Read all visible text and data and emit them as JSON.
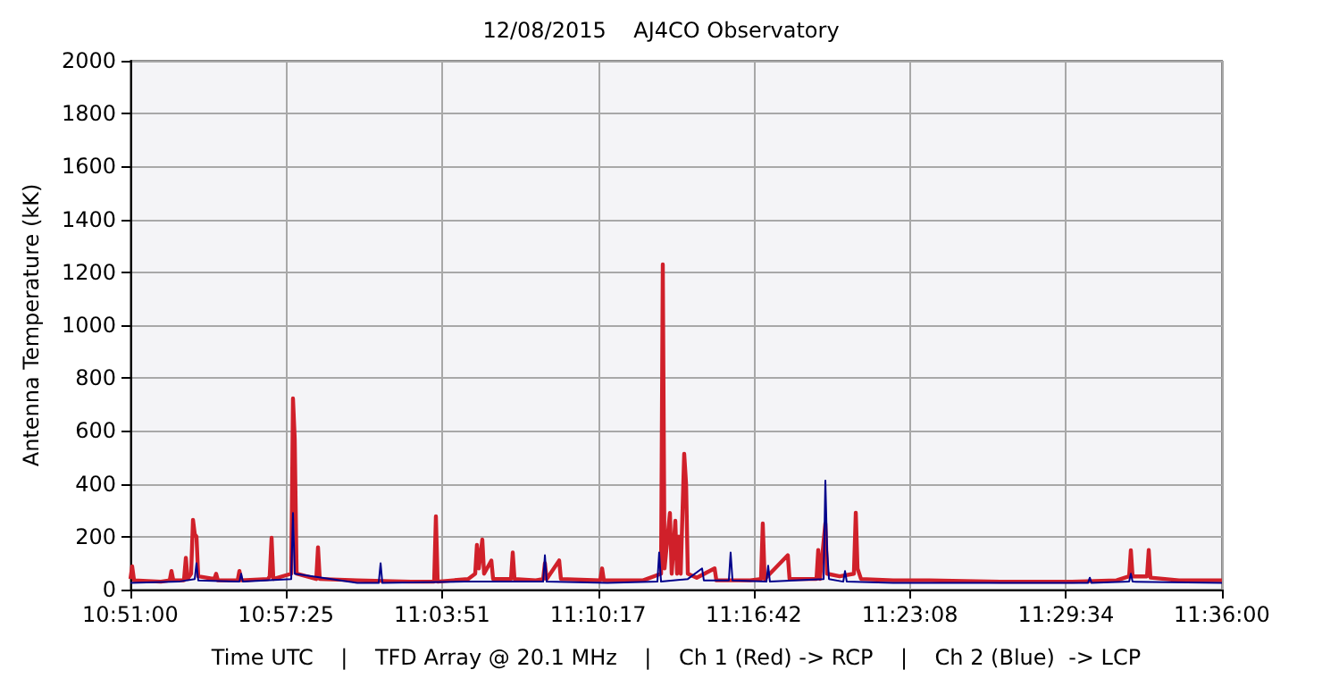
{
  "chart_data": {
    "type": "line",
    "title": "12/08/2015    AJ4CO Observatory",
    "xlabel": "Time UTC    |    TFD Array @ 20.1 MHz    |    Ch 1 (Red) -> RCP    |    Ch 2 (Blue)  -> LCP",
    "ylabel": "Antenna Temperature (kK)",
    "xlim": [
      10.85,
      11.6
    ],
    "xticks": [
      {
        "value": 10.85,
        "label": "10:51:00"
      },
      {
        "value": 10.95694,
        "label": "10:57:25"
      },
      {
        "value": 11.06417,
        "label": "11:03:51"
      },
      {
        "value": 11.17139,
        "label": "11:10:17"
      },
      {
        "value": 11.27833,
        "label": "11:16:42"
      },
      {
        "value": 11.38556,
        "label": "11:23:08"
      },
      {
        "value": 11.49278,
        "label": "11:29:34"
      },
      {
        "value": 11.6,
        "label": "11:36:00"
      }
    ],
    "ylim": [
      0,
      2000
    ],
    "yticks": [
      0,
      200,
      400,
      600,
      800,
      1000,
      1200,
      1400,
      1600,
      1800,
      2000
    ],
    "grid": true,
    "marker": "none",
    "line_style": "solid",
    "series": [
      {
        "color": "#d0202a",
        "x": [
          10.85,
          10.8512,
          10.8525,
          10.8709,
          10.877,
          10.8782,
          10.8795,
          10.8868,
          10.8881,
          10.8893,
          10.8917,
          10.893,
          10.8942,
          10.8954,
          10.8966,
          10.9077,
          10.9089,
          10.9101,
          10.9237,
          10.9249,
          10.9261,
          10.9445,
          10.9457,
          10.947,
          10.9482,
          10.9605,
          10.9617,
          10.9629,
          10.9642,
          10.9777,
          10.9789,
          10.9801,
          11.0059,
          11.0427,
          11.0587,
          11.0599,
          11.0611,
          11.082,
          11.0869,
          11.0881,
          11.0894,
          11.0918,
          11.093,
          11.098,
          11.0992,
          11.1115,
          11.1127,
          11.1139,
          11.1286,
          11.1336,
          11.1348,
          11.136,
          11.1446,
          11.1458,
          11.1728,
          11.1741,
          11.1753,
          11.2023,
          11.2146,
          11.2158,
          11.217,
          11.2207,
          11.2219,
          11.2244,
          11.2256,
          11.2268,
          11.2281,
          11.2305,
          11.2318,
          11.233,
          11.2391,
          11.2514,
          11.2526,
          11.2759,
          11.2833,
          11.2845,
          11.2858,
          11.3017,
          11.3029,
          11.3214,
          11.3226,
          11.3238,
          11.3275,
          11.3287,
          11.3373,
          11.3471,
          11.3484,
          11.3496,
          11.352,
          11.3741,
          11.3987,
          11.4478,
          11.4969,
          11.5276,
          11.5362,
          11.5374,
          11.5386,
          11.5485,
          11.5497,
          11.5509,
          11.5705,
          11.6
        ],
        "values": [
          40,
          88,
          35,
          30,
          35,
          70,
          35,
          35,
          120,
          40,
          60,
          264,
          210,
          200,
          50,
          40,
          60,
          35,
          35,
          70,
          35,
          40,
          50,
          196,
          40,
          60,
          723,
          570,
          60,
          40,
          160,
          40,
          35,
          30,
          30,
          277,
          30,
          40,
          60,
          169,
          80,
          189,
          60,
          110,
          40,
          40,
          140,
          40,
          35,
          40,
          100,
          40,
          110,
          40,
          35,
          80,
          35,
          35,
          60,
          1230,
          80,
          290,
          60,
          260,
          60,
          200,
          60,
          514,
          400,
          60,
          45,
          80,
          35,
          35,
          40,
          250,
          40,
          130,
          40,
          40,
          150,
          40,
          250,
          60,
          50,
          60,
          291,
          80,
          40,
          35,
          35,
          30,
          30,
          35,
          50,
          149,
          50,
          50,
          150,
          45,
          35,
          35
        ]
      },
      {
        "color": "#00008b",
        "x": [
          10.85,
          10.8831,
          10.8942,
          10.8954,
          10.8966,
          10.9249,
          10.9261,
          10.9273,
          10.9605,
          10.9617,
          10.9629,
          11.0059,
          11.0206,
          11.0219,
          11.0231,
          11.0795,
          11.1336,
          11.1348,
          11.136,
          11.1777,
          11.2121,
          11.2133,
          11.2146,
          11.233,
          11.2428,
          11.244,
          11.2612,
          11.2624,
          11.2637,
          11.287,
          11.2882,
          11.2894,
          11.3263,
          11.3275,
          11.3287,
          11.33,
          11.3398,
          11.341,
          11.3422,
          11.3741,
          11.4355,
          11.4969,
          11.5079,
          11.5092,
          11.5104,
          11.5362,
          11.5374,
          11.5386,
          11.6
        ],
        "values": [
          25,
          30,
          40,
          100,
          35,
          30,
          60,
          30,
          40,
          290,
          60,
          25,
          25,
          100,
          25,
          30,
          30,
          130,
          30,
          25,
          30,
          140,
          30,
          40,
          80,
          35,
          35,
          140,
          35,
          30,
          90,
          30,
          40,
          412,
          150,
          40,
          30,
          70,
          30,
          25,
          25,
          25,
          25,
          45,
          25,
          30,
          60,
          30,
          25
        ]
      }
    ]
  }
}
